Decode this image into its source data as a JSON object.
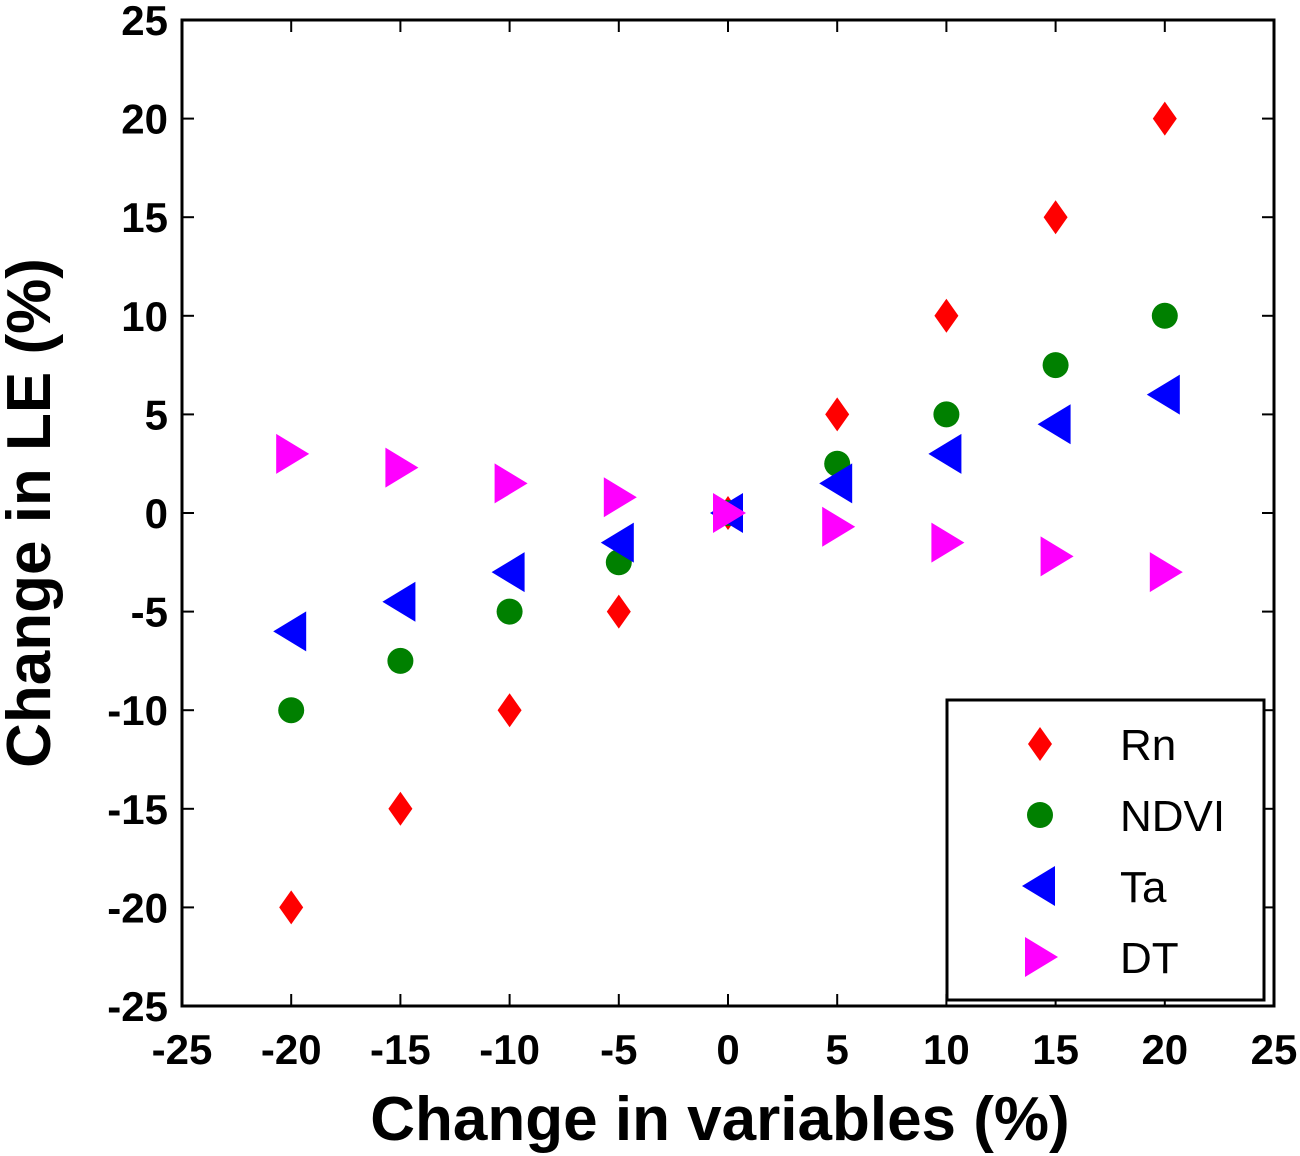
{
  "chart_data": {
    "type": "scatter",
    "title": "",
    "xlabel": "Change in variables (%)",
    "ylabel": "Change in LE (%)",
    "xlim": [
      -25,
      25
    ],
    "ylim": [
      -25,
      25
    ],
    "xticks": [
      -25,
      -20,
      -15,
      -10,
      -5,
      0,
      5,
      10,
      15,
      20,
      25
    ],
    "yticks": [
      -25,
      -20,
      -15,
      -10,
      -5,
      0,
      5,
      10,
      15,
      20,
      25
    ],
    "grid": false,
    "legend_position": "bottom-right",
    "series": [
      {
        "name": "Rn",
        "marker": "diamond",
        "color": "#ff0000",
        "x": [
          -20,
          -15,
          -10,
          -5,
          0,
          5,
          10,
          15,
          20
        ],
        "y": [
          -20,
          -15,
          -10,
          -5,
          0,
          5,
          10,
          15,
          20
        ]
      },
      {
        "name": "NDVI",
        "marker": "circle",
        "color": "#008000",
        "x": [
          -20,
          -15,
          -10,
          -5,
          0,
          5,
          10,
          15,
          20
        ],
        "y": [
          -10,
          -7.5,
          -5,
          -2.5,
          0,
          2.5,
          5,
          7.5,
          10
        ]
      },
      {
        "name": "Ta",
        "marker": "triangle-left",
        "color": "#0000ff",
        "x": [
          -20,
          -15,
          -10,
          -5,
          0,
          5,
          10,
          15,
          20
        ],
        "y": [
          -6,
          -4.5,
          -3,
          -1.5,
          0,
          1.5,
          3,
          4.5,
          6
        ]
      },
      {
        "name": "DT",
        "marker": "triangle-right",
        "color": "#ff00ff",
        "x": [
          -20,
          -15,
          -10,
          -5,
          0,
          5,
          10,
          15,
          20
        ],
        "y": [
          3,
          2.3,
          1.5,
          0.8,
          0,
          -0.7,
          -1.5,
          -2.2,
          -3
        ]
      }
    ]
  }
}
